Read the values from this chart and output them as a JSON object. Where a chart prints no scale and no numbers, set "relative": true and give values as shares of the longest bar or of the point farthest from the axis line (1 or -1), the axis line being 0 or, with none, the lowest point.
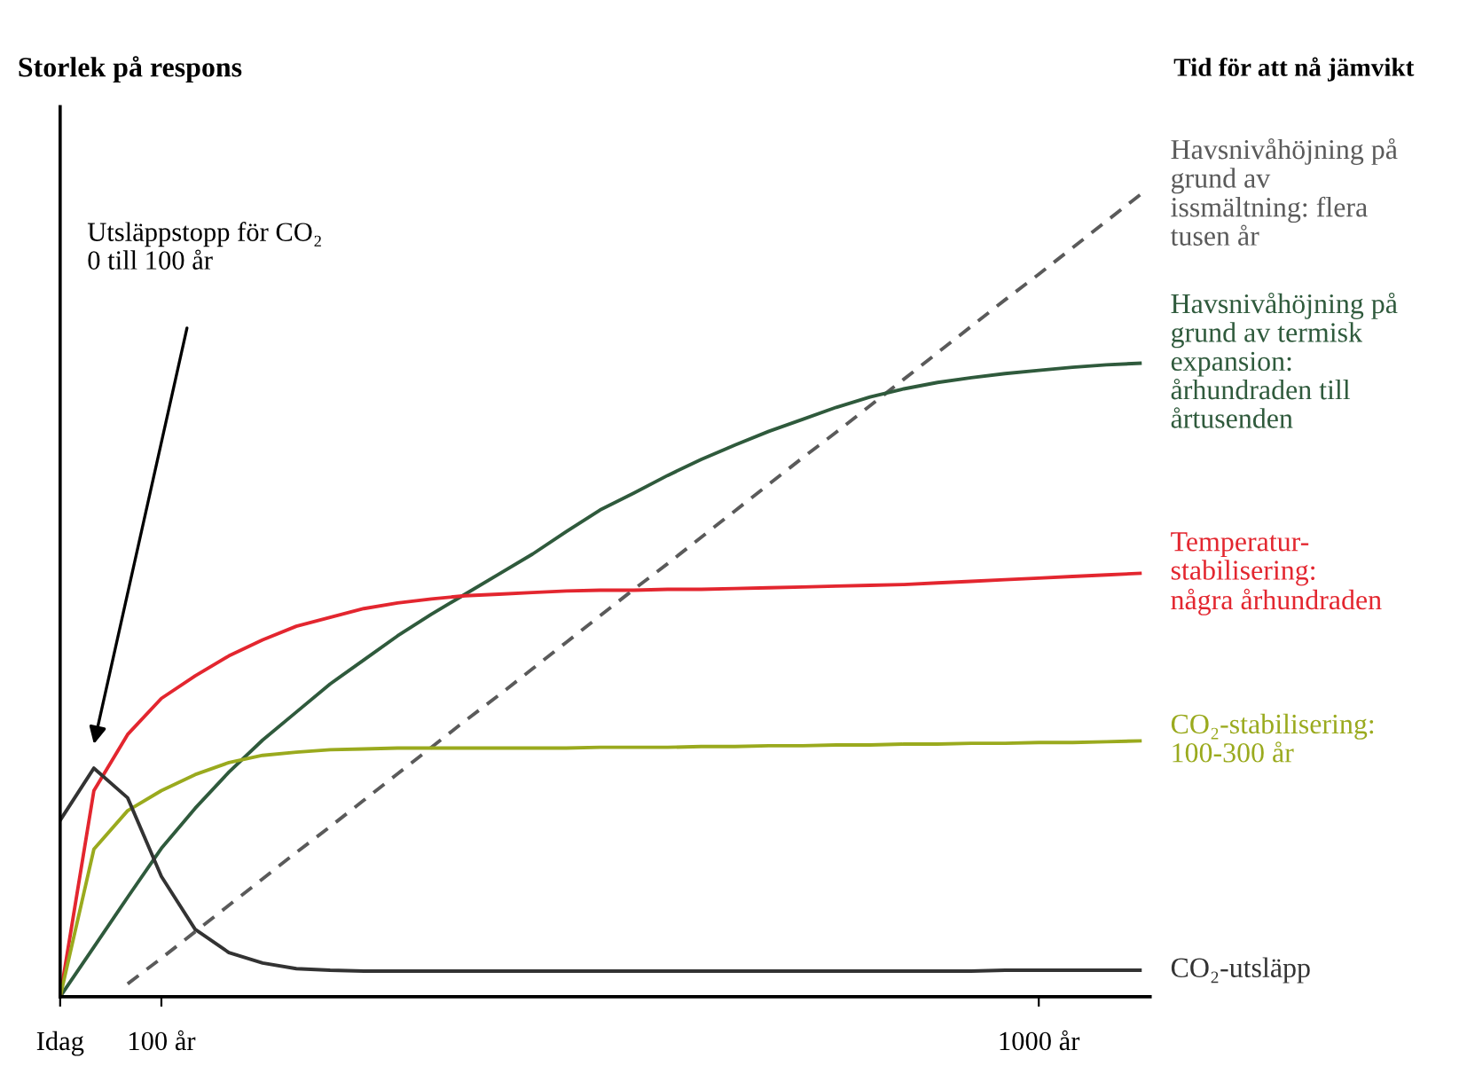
{
  "chart_data": {
    "type": "line",
    "relative": true,
    "ylabel": "Storlek på respons",
    "legend_title": "Tid för att nå jämvikt",
    "annotations": [
      "Utsläppstopp för CO₂\n0 till 100 år"
    ],
    "categories": [
      "Idag",
      null,
      null,
      "100 år",
      null,
      null,
      null,
      null,
      null,
      null,
      null,
      null,
      null,
      null,
      null,
      null,
      null,
      null,
      null,
      null,
      null,
      null,
      null,
      null,
      null,
      null,
      null,
      null,
      null,
      "1000 år",
      null,
      null,
      null
    ],
    "legend": false,
    "grid": false,
    "marker": "none",
    "series": [
      {
        "name": "Havsnivåhöjning på\ngrund av\nissmältning: flera\ntusen år",
        "color": "#5a5a5a",
        "line_style": "dashed",
        "values": [
          null,
          null,
          0.016,
          0.048,
          0.081,
          0.114,
          0.147,
          0.18,
          0.212,
          0.245,
          0.278,
          0.311,
          0.344,
          0.376,
          0.409,
          0.442,
          0.475,
          0.508,
          0.54,
          0.573,
          0.606,
          0.639,
          0.672,
          0.704,
          0.737,
          0.77,
          0.803,
          0.836,
          0.869,
          0.901,
          0.934,
          0.967,
          1.0
        ]
      },
      {
        "name": "Havsnivåhöjning på\ngrund av termisk\nexpansion:\nårhundraden till\nårtusenden",
        "color": "#2f5a3c",
        "line_style": "solid",
        "values": [
          0,
          0.062,
          0.124,
          0.185,
          0.235,
          0.28,
          0.32,
          0.355,
          0.39,
          0.42,
          0.45,
          0.477,
          0.502,
          0.527,
          0.552,
          0.58,
          0.607,
          0.628,
          0.65,
          0.67,
          0.688,
          0.705,
          0.72,
          0.735,
          0.748,
          0.758,
          0.766,
          0.772,
          0.777,
          0.781,
          0.785,
          0.788,
          0.79
        ]
      },
      {
        "name": "Temperatur-\nstabilisering:\nnågra århundraden",
        "color": "#e3262f",
        "line_style": "solid",
        "values": [
          0,
          0.257,
          0.327,
          0.372,
          0.4,
          0.425,
          0.445,
          0.462,
          0.473,
          0.484,
          0.491,
          0.496,
          0.5,
          0.502,
          0.504,
          0.506,
          0.507,
          0.507,
          0.508,
          0.508,
          0.509,
          0.51,
          0.511,
          0.512,
          0.513,
          0.514,
          0.516,
          0.518,
          0.52,
          0.522,
          0.524,
          0.526,
          0.528
        ]
      },
      {
        "name": "CO₂-stabilisering:\n100-300 år",
        "color": "#9aaa1e",
        "line_style": "solid",
        "values": [
          0,
          0.184,
          0.232,
          0.257,
          0.277,
          0.292,
          0.301,
          0.305,
          0.308,
          0.309,
          0.31,
          0.31,
          0.31,
          0.31,
          0.31,
          0.31,
          0.311,
          0.311,
          0.311,
          0.312,
          0.312,
          0.313,
          0.313,
          0.314,
          0.314,
          0.315,
          0.315,
          0.316,
          0.316,
          0.317,
          0.317,
          0.318,
          0.319
        ]
      },
      {
        "name": "CO₂-utsläpp",
        "color": "#333333",
        "line_style": "solid",
        "values": [
          0.22,
          0.285,
          0.248,
          0.15,
          0.084,
          0.055,
          0.042,
          0.035,
          0.033,
          0.032,
          0.032,
          0.032,
          0.032,
          0.032,
          0.032,
          0.032,
          0.032,
          0.032,
          0.032,
          0.032,
          0.032,
          0.032,
          0.032,
          0.032,
          0.032,
          0.032,
          0.032,
          0.032,
          0.033,
          0.033,
          0.033,
          0.033,
          0.033
        ]
      }
    ]
  }
}
